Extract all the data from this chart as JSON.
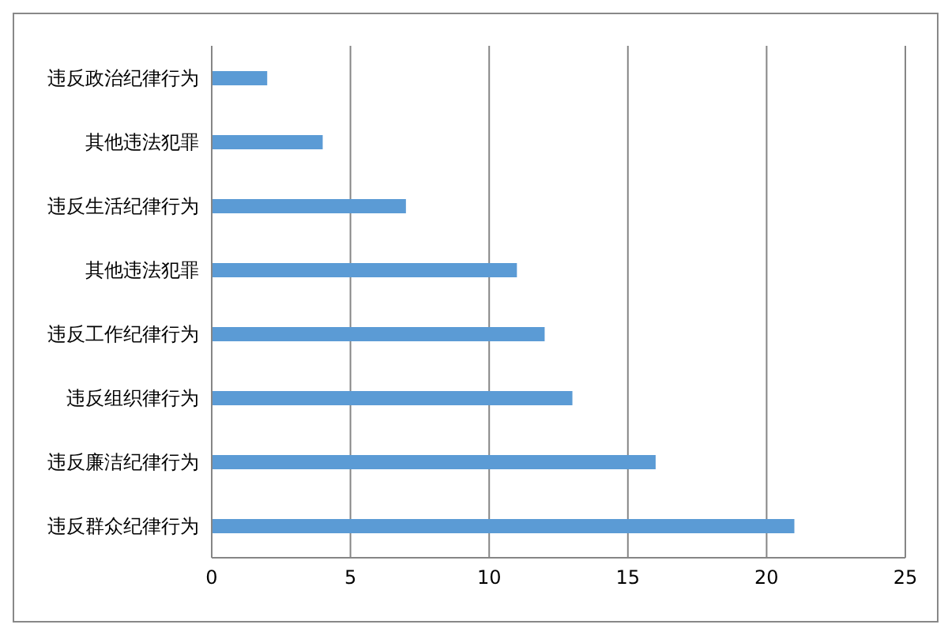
{
  "chart_data": {
    "type": "bar",
    "orientation": "horizontal",
    "categories": [
      "违反政治纪律行为",
      "其他违法犯罪",
      "违反生活纪律行为",
      "其他违法犯罪",
      "违反工作纪律行为",
      "违反组织律行为",
      "违反廉洁纪律行为",
      "违反群众纪律行为"
    ],
    "values": [
      2,
      4,
      7,
      11,
      12,
      13,
      16,
      21
    ],
    "color": "#5b9bd5",
    "xlim": [
      0,
      25
    ],
    "xticks": [
      0,
      5,
      10,
      15,
      20,
      25
    ],
    "grid": "x"
  }
}
